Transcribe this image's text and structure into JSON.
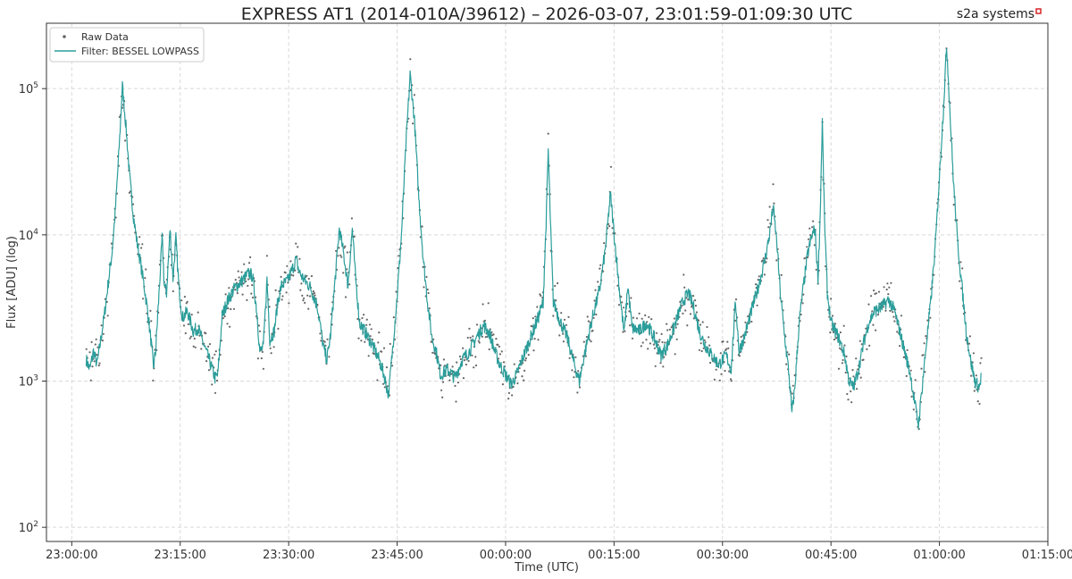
{
  "chart_data": {
    "type": "line",
    "title": "EXPRESS AT1 (2014-010A/39612) – 2026-03-07, 23:01:59-01:09:30 UTC",
    "brand": "s2a systems",
    "brand_color": "#d62728",
    "xlabel": "Time (UTC)",
    "ylabel": "Flux [ADU] (log)",
    "yscale": "log",
    "grid": true,
    "legend_position": "top-left",
    "xlim_minutes": [
      -3.5,
      135
    ],
    "ylim": [
      80,
      280000
    ],
    "x_ticks": [
      {
        "m": 0,
        "label": "23:00:00"
      },
      {
        "m": 15,
        "label": "23:15:00"
      },
      {
        "m": 30,
        "label": "23:30:00"
      },
      {
        "m": 45,
        "label": "23:45:00"
      },
      {
        "m": 60,
        "label": "00:00:00"
      },
      {
        "m": 75,
        "label": "00:15:00"
      },
      {
        "m": 90,
        "label": "00:30:00"
      },
      {
        "m": 105,
        "label": "00:45:00"
      },
      {
        "m": 120,
        "label": "01:00:00"
      },
      {
        "m": 135,
        "label": "01:15:00"
      }
    ],
    "y_ticks": [
      {
        "v": 100,
        "base": "10",
        "exp": "2"
      },
      {
        "v": 1000,
        "base": "10",
        "exp": "3"
      },
      {
        "v": 10000,
        "base": "10",
        "exp": "4"
      },
      {
        "v": 100000,
        "base": "10",
        "exp": "5"
      }
    ],
    "series": [
      {
        "name": "Raw Data",
        "style": "points",
        "color": "#666666"
      },
      {
        "name": "Filter: BESSEL LOWPASS",
        "style": "line",
        "color": "#2a9d9a",
        "points": [
          [
            2.0,
            1400
          ],
          [
            2.5,
            1200
          ],
          [
            3.0,
            1600
          ],
          [
            3.5,
            1300
          ],
          [
            4.0,
            1900
          ],
          [
            4.5,
            2800
          ],
          [
            5.0,
            4500
          ],
          [
            5.5,
            7000
          ],
          [
            6.0,
            14000
          ],
          [
            6.5,
            35000
          ],
          [
            7.0,
            105000
          ],
          [
            7.5,
            55000
          ],
          [
            8.0,
            25000
          ],
          [
            8.5,
            14000
          ],
          [
            9.0,
            9000
          ],
          [
            9.5,
            6500
          ],
          [
            10.0,
            4500
          ],
          [
            10.5,
            3000
          ],
          [
            11.0,
            1800
          ],
          [
            11.3,
            1250
          ],
          [
            11.6,
            1600
          ],
          [
            12.0,
            3500
          ],
          [
            12.5,
            9500
          ],
          [
            12.8,
            4500
          ],
          [
            13.1,
            4000
          ],
          [
            13.6,
            11000
          ],
          [
            14.0,
            5000
          ],
          [
            14.4,
            9500
          ],
          [
            14.8,
            4500
          ],
          [
            15.3,
            2700
          ],
          [
            16.0,
            3000
          ],
          [
            16.8,
            2200
          ],
          [
            17.5,
            2300
          ],
          [
            18.2,
            1800
          ],
          [
            19.0,
            1400
          ],
          [
            19.8,
            1050
          ],
          [
            20.2,
            1100
          ],
          [
            20.8,
            2800
          ],
          [
            21.5,
            3500
          ],
          [
            22.5,
            4300
          ],
          [
            23.5,
            4800
          ],
          [
            24.5,
            5500
          ],
          [
            25.0,
            5200
          ],
          [
            25.6,
            3000
          ],
          [
            26.0,
            1600
          ],
          [
            26.5,
            1700
          ],
          [
            27.0,
            5000
          ],
          [
            27.4,
            1900
          ],
          [
            28.0,
            2200
          ],
          [
            28.5,
            3500
          ],
          [
            29.0,
            4500
          ],
          [
            29.8,
            4800
          ],
          [
            30.5,
            5800
          ],
          [
            31.0,
            6800
          ],
          [
            31.5,
            5500
          ],
          [
            32.3,
            4800
          ],
          [
            33.0,
            4400
          ],
          [
            34.0,
            3200
          ],
          [
            34.8,
            1700
          ],
          [
            35.3,
            1400
          ],
          [
            35.8,
            2100
          ],
          [
            36.5,
            5500
          ],
          [
            37.0,
            11000
          ],
          [
            37.5,
            8000
          ],
          [
            38.2,
            4500
          ],
          [
            38.8,
            11000
          ],
          [
            39.2,
            5500
          ],
          [
            39.8,
            2500
          ],
          [
            40.5,
            2200
          ],
          [
            41.5,
            1800
          ],
          [
            42.5,
            1400
          ],
          [
            43.2,
            1100
          ],
          [
            43.8,
            800
          ],
          [
            44.3,
            1500
          ],
          [
            45.0,
            3800
          ],
          [
            45.6,
            10000
          ],
          [
            46.2,
            40000
          ],
          [
            46.8,
            125000
          ],
          [
            47.4,
            60000
          ],
          [
            48.0,
            18000
          ],
          [
            48.6,
            7000
          ],
          [
            49.2,
            3500
          ],
          [
            49.8,
            2000
          ],
          [
            50.4,
            1600
          ],
          [
            51.0,
            1100
          ],
          [
            52.0,
            1200
          ],
          [
            53.0,
            1050
          ],
          [
            54.0,
            1400
          ],
          [
            55.0,
            1600
          ],
          [
            56.0,
            2000
          ],
          [
            57.0,
            2400
          ],
          [
            57.8,
            2100
          ],
          [
            58.5,
            1600
          ],
          [
            59.2,
            1300
          ],
          [
            60.0,
            1100
          ],
          [
            60.8,
            950
          ],
          [
            61.5,
            1100
          ],
          [
            62.5,
            1500
          ],
          [
            63.5,
            2000
          ],
          [
            64.5,
            2700
          ],
          [
            65.2,
            3500
          ],
          [
            65.6,
            12000
          ],
          [
            65.9,
            38000
          ],
          [
            66.2,
            12000
          ],
          [
            66.6,
            3500
          ],
          [
            67.5,
            2600
          ],
          [
            68.5,
            2000
          ],
          [
            69.5,
            1300
          ],
          [
            70.2,
            1000
          ],
          [
            71.0,
            1600
          ],
          [
            72.0,
            2700
          ],
          [
            73.0,
            4200
          ],
          [
            73.8,
            8000
          ],
          [
            74.5,
            19000
          ],
          [
            75.2,
            8000
          ],
          [
            75.9,
            3500
          ],
          [
            76.4,
            2100
          ],
          [
            76.9,
            4500
          ],
          [
            77.5,
            2300
          ],
          [
            78.5,
            2200
          ],
          [
            79.5,
            2500
          ],
          [
            80.5,
            2000
          ],
          [
            81.5,
            1500
          ],
          [
            82.5,
            1800
          ],
          [
            83.5,
            2500
          ],
          [
            84.5,
            3500
          ],
          [
            85.3,
            4000
          ],
          [
            86.0,
            3200
          ],
          [
            86.8,
            2200
          ],
          [
            87.5,
            1800
          ],
          [
            88.5,
            1500
          ],
          [
            89.5,
            1300
          ],
          [
            90.5,
            1500
          ],
          [
            91.2,
            1200
          ],
          [
            91.8,
            3500
          ],
          [
            92.3,
            1600
          ],
          [
            93.0,
            2000
          ],
          [
            94.0,
            3000
          ],
          [
            95.0,
            4500
          ],
          [
            95.8,
            6500
          ],
          [
            96.5,
            10000
          ],
          [
            97.0,
            15500
          ],
          [
            97.5,
            9000
          ],
          [
            98.0,
            4000
          ],
          [
            98.6,
            2000
          ],
          [
            99.2,
            1100
          ],
          [
            99.6,
            600
          ],
          [
            100.0,
            900
          ],
          [
            100.6,
            2500
          ],
          [
            101.2,
            4500
          ],
          [
            101.8,
            7500
          ],
          [
            102.4,
            10000
          ],
          [
            102.8,
            11000
          ],
          [
            103.2,
            5000
          ],
          [
            103.5,
            13000
          ],
          [
            103.8,
            60000
          ],
          [
            104.1,
            13000
          ],
          [
            104.5,
            4000
          ],
          [
            105.0,
            2500
          ],
          [
            105.6,
            2200
          ],
          [
            106.2,
            1900
          ],
          [
            106.9,
            1500
          ],
          [
            107.5,
            1000
          ],
          [
            108.1,
            900
          ],
          [
            108.8,
            1200
          ],
          [
            109.5,
            1800
          ],
          [
            110.2,
            2500
          ],
          [
            111.0,
            3000
          ],
          [
            112.0,
            3200
          ],
          [
            113.0,
            3600
          ],
          [
            113.8,
            3000
          ],
          [
            114.5,
            2200
          ],
          [
            115.2,
            1600
          ],
          [
            116.0,
            1100
          ],
          [
            116.6,
            700
          ],
          [
            117.1,
            500
          ],
          [
            117.6,
            900
          ],
          [
            118.2,
            1800
          ],
          [
            118.8,
            3500
          ],
          [
            119.4,
            8000
          ],
          [
            120.0,
            25000
          ],
          [
            120.6,
            80000
          ],
          [
            121.0,
            200000
          ],
          [
            121.4,
            80000
          ],
          [
            121.9,
            25000
          ],
          [
            122.5,
            9000
          ],
          [
            123.1,
            4500
          ],
          [
            123.7,
            2200
          ],
          [
            124.3,
            1400
          ],
          [
            124.9,
            1000
          ],
          [
            125.5,
            900
          ],
          [
            125.8,
            1100
          ]
        ]
      }
    ]
  }
}
